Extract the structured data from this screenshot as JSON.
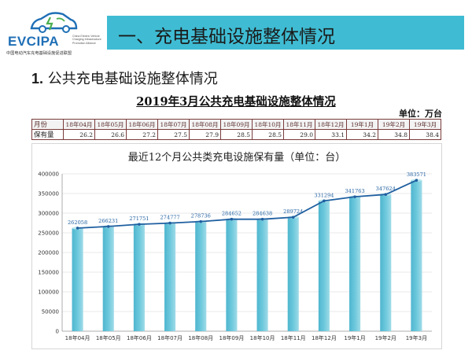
{
  "header": {
    "logo_brand": "EVCIPA",
    "logo_en": "China Electric Vehicle Charging Infrastructure Promotion Alliance",
    "logo_cn": "中国电动汽车充电基础设施促进联盟",
    "title": "一、充电基础设施整体情况"
  },
  "section_heading": {
    "number": "1.",
    "text": "公共充电基础设施整体情况"
  },
  "table_title": "2019年3月公共充电基础设施整体情况",
  "unit_label": "单位：万台",
  "summary_table": {
    "row_labels": [
      "月份",
      "保有量"
    ],
    "months": [
      "18年04月",
      "18年05月",
      "18年06月",
      "18年07月",
      "18年08月",
      "18年09月",
      "18年10月",
      "18年11月",
      "18年12月",
      "19年1月",
      "19年2月",
      "19年3月"
    ],
    "values": [
      "26.2",
      "26.6",
      "27.2",
      "27.5",
      "27.9",
      "28.5",
      "28.5",
      "29.0",
      "33.1",
      "34.2",
      "34.8",
      "38.4"
    ]
  },
  "colors": {
    "title_bar": "#3fbcd3",
    "bar": "#6cc8dc",
    "line": "#1f5fa0",
    "brand": "#1f6fb6"
  },
  "chart_data": {
    "type": "bar",
    "title": "最近12个月公共类充电设施保有量（单位：台）",
    "categories": [
      "18年04月",
      "18年05月",
      "18年06月",
      "18年07月",
      "18年08月",
      "18年09月",
      "18年10月",
      "18年11月",
      "18年12月",
      "19年1月",
      "19年2月",
      "19年3月"
    ],
    "values": [
      262058,
      266231,
      271751,
      274777,
      278736,
      284652,
      284638,
      289724,
      331294,
      341763,
      347624,
      383571
    ],
    "overlay_line": true,
    "ylim": [
      0,
      400000
    ],
    "yticks": [
      0,
      50000,
      100000,
      150000,
      200000,
      250000,
      300000,
      350000,
      400000
    ],
    "grid": true,
    "legend": "none"
  }
}
